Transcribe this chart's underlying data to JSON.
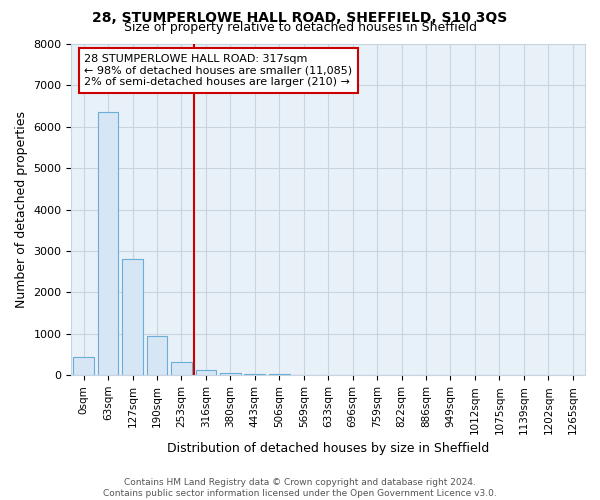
{
  "title1": "28, STUMPERLOWE HALL ROAD, SHEFFIELD, S10 3QS",
  "title2": "Size of property relative to detached houses in Sheffield",
  "xlabel": "Distribution of detached houses by size in Sheffield",
  "ylabel": "Number of detached properties",
  "footer1": "Contains HM Land Registry data © Crown copyright and database right 2024.",
  "footer2": "Contains public sector information licensed under the Open Government Licence v3.0.",
  "annotation_line1": "28 STUMPERLOWE HALL ROAD: 317sqm",
  "annotation_line2": "← 98% of detached houses are smaller (11,085)",
  "annotation_line3": "2% of semi-detached houses are larger (210) →",
  "categories": [
    "0sqm",
    "63sqm",
    "127sqm",
    "190sqm",
    "253sqm",
    "316sqm",
    "380sqm",
    "443sqm",
    "506sqm",
    "569sqm",
    "633sqm",
    "696sqm",
    "759sqm",
    "822sqm",
    "886sqm",
    "949sqm",
    "1012sqm",
    "1075sqm",
    "1139sqm",
    "1202sqm",
    "1265sqm"
  ],
  "values": [
    450,
    6350,
    2800,
    950,
    320,
    120,
    50,
    30,
    20,
    12,
    8,
    5,
    4,
    3,
    2,
    2,
    1,
    1,
    1,
    1,
    1
  ],
  "bar_facecolor": "#d6e6f5",
  "bar_edgecolor": "#6aaed6",
  "highlight_bar_index": 5,
  "highlight_color": "#cc0000",
  "vline_x": 4.5,
  "ylim": [
    0,
    8000
  ],
  "yticks": [
    0,
    1000,
    2000,
    3000,
    4000,
    5000,
    6000,
    7000,
    8000
  ],
  "background_color": "#ffffff",
  "axes_facecolor": "#e8f0f8",
  "grid_color": "#c8d4e0",
  "annotation_box_color": "#cc0000",
  "title1_fontsize": 10,
  "title2_fontsize": 9,
  "ylabel_fontsize": 9,
  "xlabel_fontsize": 9,
  "tick_fontsize": 8,
  "footer_fontsize": 6.5,
  "annotation_fontsize": 8
}
